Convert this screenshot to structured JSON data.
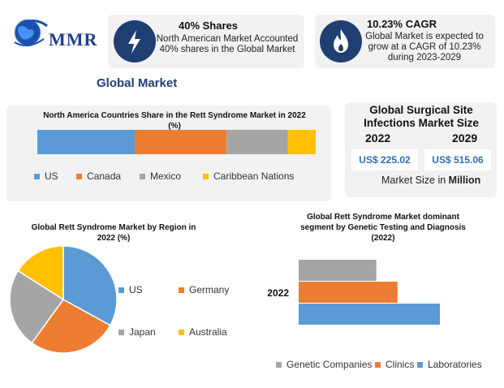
{
  "logo": {
    "text": "MMR",
    "icon": "globe-icon"
  },
  "stats": [
    {
      "icon": "lightning-icon",
      "title": "40% Shares",
      "desc_lines": [
        "North American Market Accounted",
        "40% shares in the Global Market"
      ]
    },
    {
      "icon": "flame-icon",
      "title": "10.23% CAGR",
      "desc_lines": [
        "Global Market is expected to",
        "grow at a CAGR of 10.23%",
        "during 2023-2029"
      ]
    }
  ],
  "section_heading": "Global Market",
  "market_size": {
    "title_lines": [
      "Global Surgical Site",
      "Infections Market Size"
    ],
    "year_start": "2022",
    "year_end": "2029",
    "value_start": "US$ 225.02",
    "value_end": "US$ 515.06",
    "caption_prefix": "Market Size in ",
    "caption_unit": "Million"
  },
  "chart_data": [
    {
      "type": "bar",
      "title_lines": [
        "North America Countries Share in the Rett Syndrome Market in 2022",
        "(%)"
      ],
      "stacked": true,
      "orientation": "horizontal",
      "series": [
        {
          "name": "US",
          "color": "#5b9bd5",
          "values": [
            35
          ]
        },
        {
          "name": "Canada",
          "color": "#ed7d31",
          "values": [
            33
          ]
        },
        {
          "name": "Mexico",
          "color": "#a5a5a5",
          "values": [
            22
          ]
        },
        {
          "name": "Caribbean Nations",
          "color": "#ffc000",
          "values": [
            10
          ]
        }
      ],
      "legend_position": "bottom"
    },
    {
      "type": "pie",
      "title_lines": [
        "Global Rett Syndrome Market by Region in",
        "2022 (%)"
      ],
      "slices": [
        {
          "label": "US",
          "value": 33,
          "color": "#5b9bd5"
        },
        {
          "label": "Germany",
          "value": 27,
          "color": "#ed7d31"
        },
        {
          "label": "Japan",
          "value": 24,
          "color": "#a5a5a5"
        },
        {
          "label": "Australia",
          "value": 16,
          "color": "#ffc000"
        }
      ],
      "legend_position": "right"
    },
    {
      "type": "bar",
      "title_lines": [
        "Global Rett Syndrome Market dominant",
        "segment by Genetic Testing and Diagnosis",
        "(2022)"
      ],
      "orientation": "horizontal",
      "categories": [
        "2022"
      ],
      "series": [
        {
          "name": "Genetic Companies",
          "color": "#a5a5a5",
          "values": [
            55
          ]
        },
        {
          "name": "Clinics",
          "color": "#ed7d31",
          "values": [
            70
          ]
        },
        {
          "name": "Laboratories",
          "color": "#5b9bd5",
          "values": [
            100
          ]
        }
      ],
      "xlim": [
        0,
        100
      ],
      "legend_position": "bottom"
    }
  ]
}
